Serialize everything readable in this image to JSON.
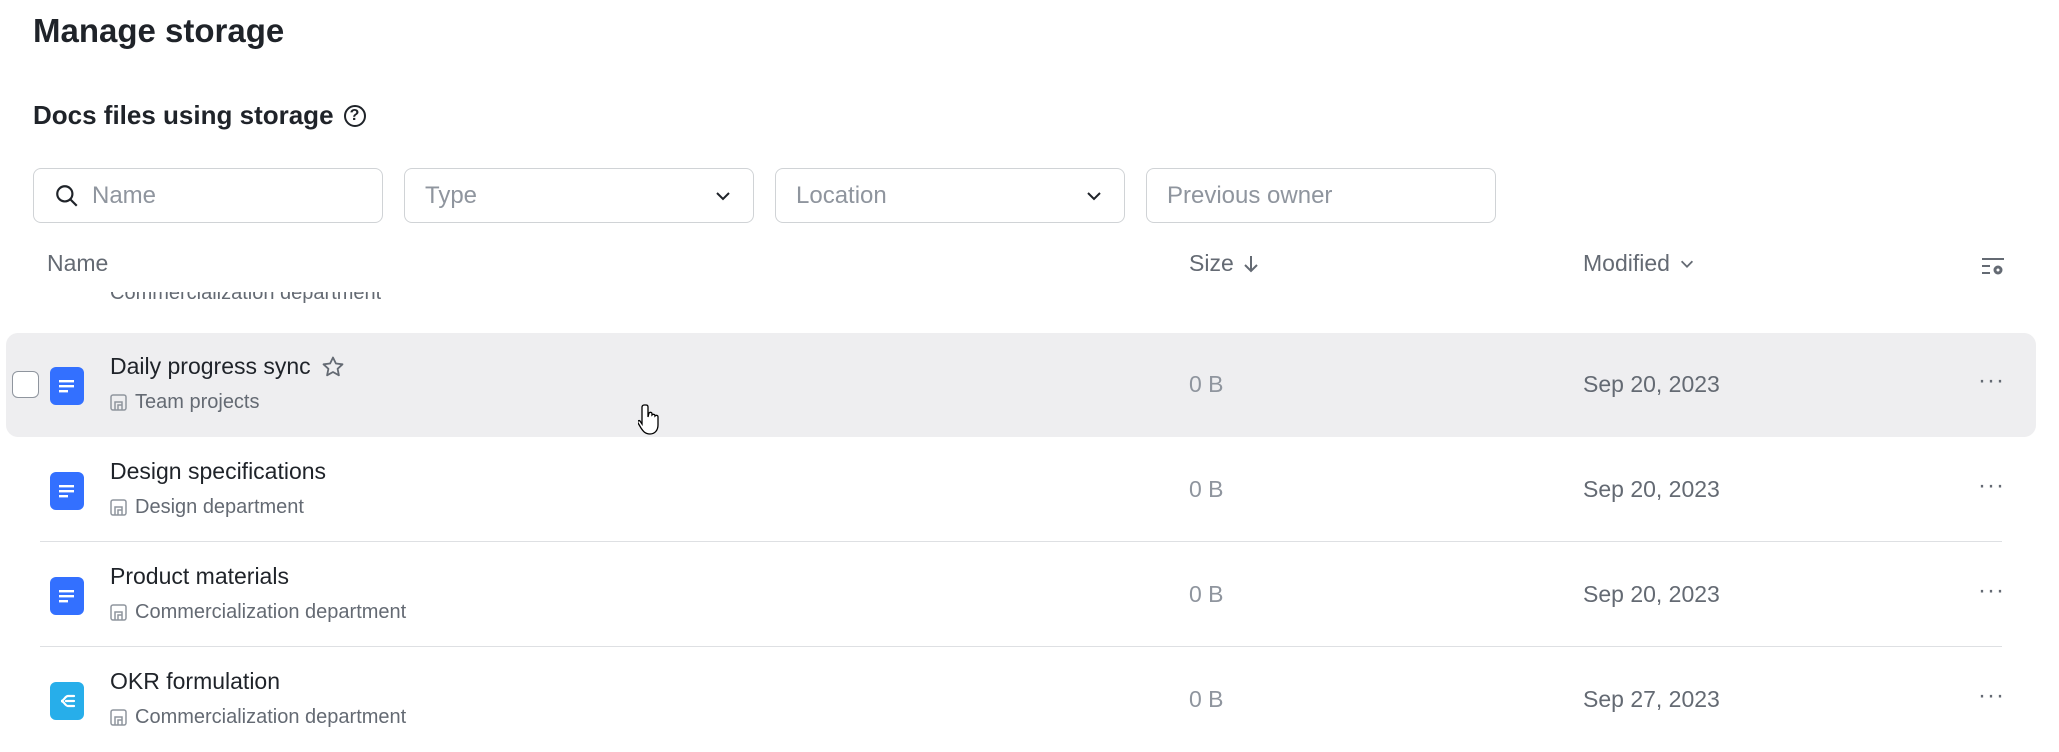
{
  "page_title": "Manage storage",
  "section_title": "Docs files using storage",
  "filters": {
    "name_placeholder": "Name",
    "type_placeholder": "Type",
    "location_placeholder": "Location",
    "previous_owner_placeholder": "Previous owner"
  },
  "columns": {
    "name": "Name",
    "size": "Size",
    "modified": "Modified"
  },
  "partial_row_location": "Commercialization department",
  "rows": [
    {
      "name": "Daily progress sync",
      "location": "Team projects",
      "size": "0 B",
      "modified": "Sep 20, 2023",
      "icon": "doc-icon",
      "hovered": true
    },
    {
      "name": "Design specifications",
      "location": "Design department",
      "size": "0 B",
      "modified": "Sep 20, 2023",
      "icon": "doc-icon"
    },
    {
      "name": "Product materials",
      "location": "Commercialization department",
      "size": "0 B",
      "modified": "Sep 20, 2023",
      "icon": "doc-icon"
    },
    {
      "name": "OKR formulation",
      "location": "Commercialization department",
      "size": "0 B",
      "modified": "Sep 27, 2023",
      "icon": "mindnote-icon"
    }
  ],
  "colors": {
    "doc": "#3370ff",
    "mindnote": "#27aeea",
    "hover_row": "#eeeef0"
  }
}
